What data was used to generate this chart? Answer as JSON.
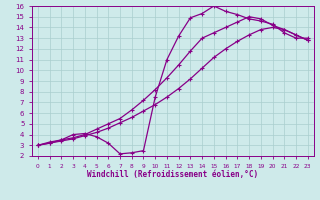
{
  "bg_color": "#ceeaea",
  "line_color": "#880088",
  "grid_color": "#aacece",
  "xlabel": "Windchill (Refroidissement éolien,°C)",
  "xlim": [
    -0.5,
    23.5
  ],
  "ylim": [
    2,
    16
  ],
  "xticks": [
    0,
    1,
    2,
    3,
    4,
    5,
    6,
    7,
    8,
    9,
    10,
    11,
    12,
    13,
    14,
    15,
    16,
    17,
    18,
    19,
    20,
    21,
    22,
    23
  ],
  "yticks": [
    2,
    3,
    4,
    5,
    6,
    7,
    8,
    9,
    10,
    11,
    12,
    13,
    14,
    15,
    16
  ],
  "curve1_x": [
    0,
    1,
    2,
    3,
    4,
    5,
    6,
    7,
    8,
    9,
    10,
    11,
    12,
    13,
    14,
    15,
    16,
    17,
    18,
    19,
    20,
    21,
    22,
    23
  ],
  "curve1_y": [
    3.0,
    3.3,
    3.5,
    4.0,
    4.1,
    3.8,
    3.2,
    2.2,
    2.3,
    2.5,
    7.5,
    11.0,
    13.2,
    14.9,
    15.3,
    16.0,
    15.5,
    15.2,
    14.8,
    14.6,
    14.3,
    13.5,
    13.0,
    13.0
  ],
  "curve2_x": [
    0,
    1,
    2,
    3,
    4,
    5,
    6,
    7,
    8,
    9,
    10,
    11,
    12,
    13,
    14,
    15,
    16,
    17,
    18,
    19,
    20,
    21,
    22,
    23
  ],
  "curve2_y": [
    3.0,
    3.2,
    3.5,
    3.7,
    4.0,
    4.5,
    5.0,
    5.5,
    6.3,
    7.2,
    8.2,
    9.3,
    10.5,
    11.8,
    13.0,
    13.5,
    14.0,
    14.5,
    15.0,
    14.8,
    14.2,
    13.8,
    13.3,
    12.8
  ],
  "curve3_x": [
    0,
    1,
    2,
    3,
    4,
    5,
    6,
    7,
    8,
    9,
    10,
    11,
    12,
    13,
    14,
    15,
    16,
    17,
    18,
    19,
    20,
    21,
    22,
    23
  ],
  "curve3_y": [
    3.0,
    3.2,
    3.4,
    3.6,
    3.9,
    4.2,
    4.6,
    5.1,
    5.6,
    6.2,
    6.8,
    7.5,
    8.3,
    9.2,
    10.2,
    11.2,
    12.0,
    12.7,
    13.3,
    13.8,
    14.0,
    13.8,
    13.3,
    12.8
  ]
}
